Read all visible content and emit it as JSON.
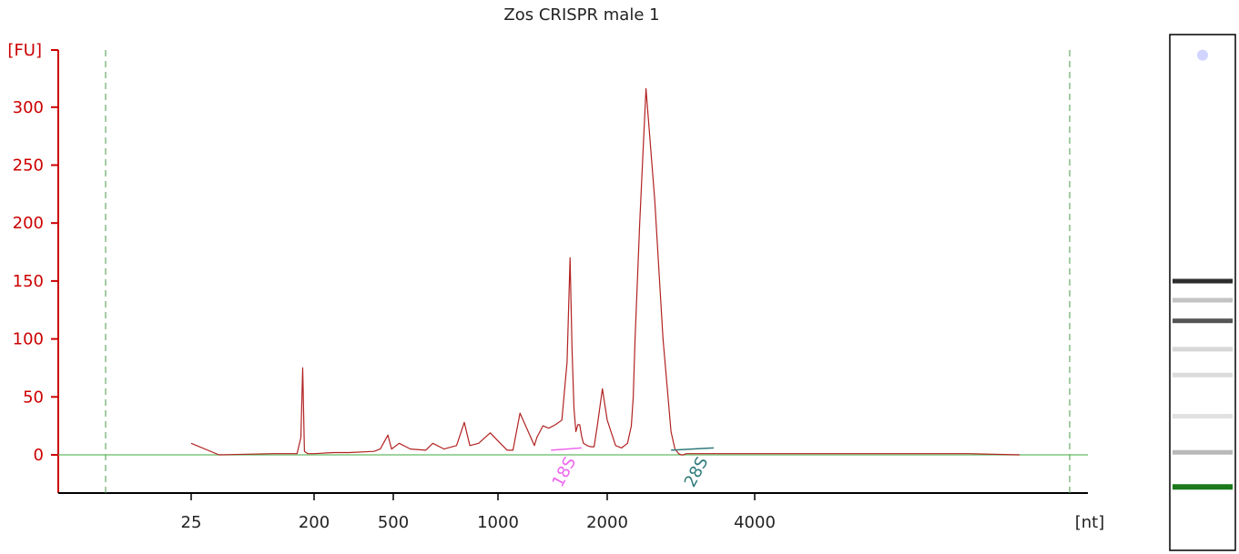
{
  "chart_data": {
    "type": "line",
    "title": "Zos CRISPR male 1",
    "ylabel": "[FU]",
    "xlabel": "[nt]",
    "ylim": [
      -30,
      350
    ],
    "y_ticks": [
      0,
      50,
      100,
      150,
      200,
      250,
      300
    ],
    "x_scale": "log (electropherogram size axis)",
    "x_ticks": [
      25,
      200,
      500,
      1000,
      2000,
      4000
    ],
    "grid": false,
    "colors": {
      "trace": "#b22222",
      "baseline": "#66bb66",
      "y_axis": "#cc0000",
      "marker_lines": "#4a9a4a",
      "peak_18S": "#ee66ee",
      "peak_28S": "#2f7a7a",
      "gel_lower_marker": "#1a7a1a"
    },
    "series": [
      {
        "x": [
          25,
          40,
          100,
          150,
          160,
          165,
          170,
          180,
          200,
          250,
          300,
          400,
          430,
          470,
          490,
          520,
          560,
          620,
          650,
          700,
          760,
          800,
          830,
          880,
          950,
          1000,
          1060,
          1100,
          1150,
          1220,
          1260,
          1280,
          1330,
          1380,
          1440,
          1500,
          1550,
          1580,
          1600,
          1620,
          1640,
          1660,
          1680,
          1700,
          1720,
          1760,
          1800,
          1840,
          1880,
          1940,
          2000,
          2080,
          2140,
          2200,
          2240,
          2260,
          2280,
          2330,
          2400,
          2500,
          2600,
          2700,
          2750,
          2800,
          2830,
          2860,
          2900,
          2950,
          3000,
          3050,
          3150,
          3300,
          4000,
          4300,
          5500,
          7000,
          8000
        ],
        "y": [
          10,
          0,
          1,
          1,
          15,
          75,
          3,
          1,
          1,
          2,
          2,
          3,
          5,
          17,
          5,
          10,
          5,
          4,
          10,
          5,
          8,
          28,
          8,
          10,
          19,
          12,
          4,
          4,
          36,
          18,
          8,
          15,
          25,
          23,
          26,
          30,
          80,
          170,
          90,
          40,
          20,
          26,
          26,
          16,
          10,
          8,
          7,
          7,
          26,
          57,
          30,
          8,
          6,
          10,
          25,
          50,
          100,
          200,
          316,
          220,
          100,
          20,
          5,
          1,
          0,
          0,
          1,
          1,
          1,
          1,
          1,
          1,
          1,
          1,
          1,
          1,
          0
        ]
      }
    ],
    "annotations": [
      {
        "label": "18S",
        "x_start": 1400,
        "x_end": 1700
      },
      {
        "label": "28S",
        "x_start": 2700,
        "x_end": 3300
      }
    ],
    "gel_bands": [
      {
        "position": 0.04,
        "intensity": 0.3
      },
      {
        "position": 0.478,
        "intensity": 0.95
      },
      {
        "position": 0.515,
        "intensity": 0.2
      },
      {
        "position": 0.555,
        "intensity": 0.75
      },
      {
        "position": 0.61,
        "intensity": 0.1
      },
      {
        "position": 0.66,
        "intensity": 0.08
      },
      {
        "position": 0.74,
        "intensity": 0.05
      },
      {
        "position": 0.81,
        "intensity": 0.25
      },
      {
        "position": 0.877,
        "intensity": 1.0
      }
    ]
  }
}
